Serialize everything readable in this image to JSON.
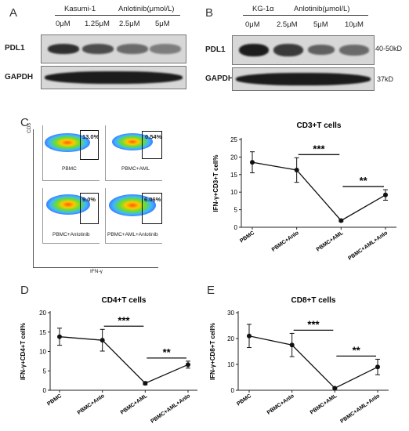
{
  "panels": {
    "A": {
      "letter": "A",
      "cell_line": "Kasumi-1",
      "drug_label": "Anlotinib(μmol/L)",
      "concentrations": [
        "0μM",
        "1.25μM",
        "2.5μM",
        "5μM"
      ],
      "rows": [
        "PDL1",
        "GAPDH"
      ],
      "pdl1_intensity": [
        0.85,
        0.7,
        0.55,
        0.45
      ]
    },
    "B": {
      "letter": "B",
      "cell_line": "KG-1α",
      "drug_label": "Anlotinib(μmol/L)",
      "concentrations": [
        "0μM",
        "2.5μM",
        "5μM",
        "10μM"
      ],
      "rows": [
        "PDL1",
        "GAPDH"
      ],
      "sizes": [
        "40-50kD",
        "37kD"
      ],
      "pdl1_intensity": [
        0.95,
        0.8,
        0.6,
        0.55
      ]
    },
    "C": {
      "letter": "C",
      "y_axis": "CD3",
      "x_axis": "IFN-γ",
      "plots": [
        {
          "label": "PBMC",
          "value": "13.0%"
        },
        {
          "label": "PBMC+AML",
          "value": "0.54%"
        },
        {
          "label": "PBMC+Anlotinib",
          "value": "9.0%"
        },
        {
          "label": "PBMC+AML+Anlotinib",
          "value": "6.06%"
        }
      ]
    },
    "D": {
      "letter": "D"
    },
    "E": {
      "letter": "E"
    }
  },
  "chart_data": [
    {
      "type": "line",
      "title": "CD3+T cells",
      "ylabel": "IFN-γ+CD3+T cell%",
      "categories": [
        "PBMC",
        "PBMC+Anlo",
        "PBMC+AML",
        "PBMC+AML+Anlo"
      ],
      "values": [
        18.5,
        16.3,
        1.9,
        9.2
      ],
      "errors": [
        3.0,
        3.5,
        0.3,
        1.5
      ],
      "ylim": [
        0,
        25
      ],
      "yticks": [
        0,
        5,
        10,
        15,
        20,
        25
      ],
      "annotations": [
        {
          "from": 1,
          "to": 2,
          "label": "***"
        },
        {
          "from": 2,
          "to": 3,
          "label": "**"
        }
      ],
      "marker": "circle"
    },
    {
      "type": "line",
      "title": "CD4+T cells",
      "ylabel": "IFN-γ+CD4+T cell%",
      "categories": [
        "PBMC",
        "PBMC+Anlo",
        "PBMC+AML",
        "PBMC+AML+Anlo"
      ],
      "values": [
        13.8,
        12.9,
        1.8,
        6.6
      ],
      "errors": [
        2.2,
        2.8,
        0.4,
        0.9
      ],
      "ylim": [
        0,
        20
      ],
      "yticks": [
        0,
        5,
        10,
        15,
        20
      ],
      "annotations": [
        {
          "from": 1,
          "to": 2,
          "label": "***"
        },
        {
          "from": 2,
          "to": 3,
          "label": "**"
        }
      ],
      "marker": "circle"
    },
    {
      "type": "line",
      "title": "CD8+T cells",
      "ylabel": "IFN-γ+CD8+T cell%",
      "categories": [
        "PBMC",
        "PBMC+Anlo",
        "PBMC+AML",
        "PBMC+AML+Anlo"
      ],
      "values": [
        21,
        17.5,
        0.8,
        9
      ],
      "errors": [
        4.5,
        4.5,
        0.3,
        3
      ],
      "ylim": [
        0,
        30
      ],
      "yticks": [
        0,
        10,
        20,
        30
      ],
      "annotations": [
        {
          "from": 1,
          "to": 2,
          "label": "***"
        },
        {
          "from": 2,
          "to": 3,
          "label": "**"
        }
      ],
      "marker": "circle"
    }
  ]
}
